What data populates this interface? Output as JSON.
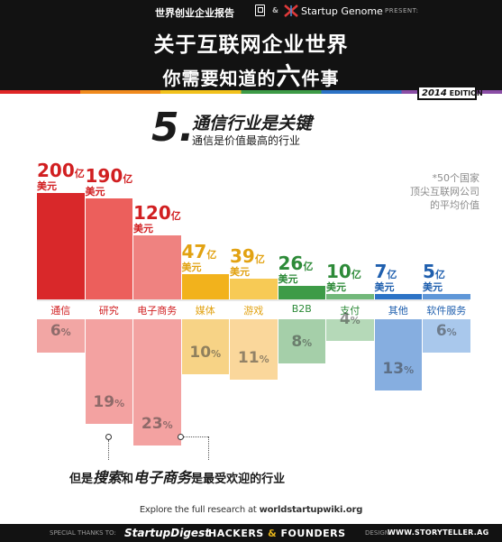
{
  "header": {
    "publisher": "世界创业企业报告",
    "amp": "&",
    "partner": "Startup Genome",
    "present": "PRESENT:",
    "title_line1": "关于互联网企业世界",
    "title_line2_a": "你需要知道的",
    "title_line2_big": "六",
    "title_line2_b": "件事",
    "edition_year": "2014",
    "edition_label": "EDITION"
  },
  "section": {
    "number": "5.",
    "title": "通信行业是关键",
    "subtitle": "通信是价值最高的行业"
  },
  "note": "*50个国家\n顶尖互联网公司\n的平均价值",
  "colors": {
    "red": "#d9282a",
    "pink": "#ef6d6b",
    "orange": "#f2b21c",
    "green": "#3d9b47",
    "blue": "#2c73c6"
  },
  "chart_data": {
    "type": "bar",
    "value_unit": "亿",
    "value_currency": "美元",
    "categories": [
      "通信",
      "研究",
      "电子商务",
      "媒体",
      "游戏",
      "B2B",
      "支付",
      "其他",
      "软件服务"
    ],
    "series": [
      {
        "values": [
          200,
          190,
          120,
          47,
          39,
          26,
          10,
          7,
          5
        ]
      },
      {
        "values": [
          6,
          19,
          23,
          10,
          11,
          8,
          4,
          13,
          6
        ],
        "unit": "%"
      }
    ],
    "value_labels": [
      "200亿",
      "190亿",
      "120亿",
      "47亿",
      "39亿",
      "26亿",
      "10亿",
      "7亿",
      "5亿"
    ],
    "percent_labels": [
      "6%",
      "19%",
      "23%",
      "10%",
      "11%",
      "8%",
      "4%",
      "13%",
      "6%"
    ],
    "bar_colors": [
      "#d9282a",
      "#ec5f5c",
      "#ef8280",
      "#f2b21c",
      "#f7ca55",
      "#3d9b47",
      "#72b87a",
      "#2c73c6",
      "#5f97d8"
    ],
    "label_colors": [
      "#d11f21",
      "#d11f21",
      "#d11f21",
      "#e2a212",
      "#e2a212",
      "#2d8a38",
      "#2d8a38",
      "#1f5fae",
      "#1f5fae"
    ],
    "lower_colors": [
      "#f2a6a4",
      "#f3a2a1",
      "#f3a2a1",
      "#f7d386",
      "#fad79b",
      "#a5cfa9",
      "#b5d9b8",
      "#86aee0",
      "#a9c8ec"
    ],
    "top_ylim": [
      0,
      200
    ],
    "bottom_ylim": [
      0,
      23
    ]
  },
  "callout": {
    "prefix": "但是",
    "em1": "搜索",
    "mid": "和",
    "em2": "电子商务",
    "suffix": "是最受欢迎的行业"
  },
  "explore": {
    "text": "Explore the full research at",
    "url": "worldstartupwiki.org"
  },
  "footer": {
    "thanks": "SPECIAL THANKS TO:",
    "sponsor1": "StartupDigest",
    "sponsor2_a": "HACKERS",
    "sponsor2_amp": "&",
    "sponsor2_b": "FOUNDERS",
    "design_label": "DESIGN:",
    "design_site": "WWW.STORYTELLER.AG"
  }
}
